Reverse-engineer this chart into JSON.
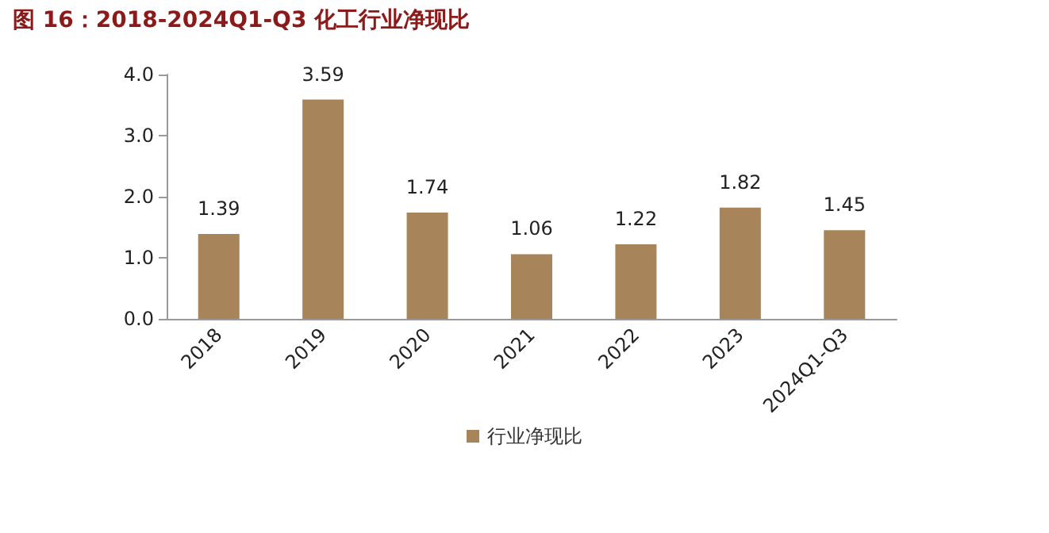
{
  "chart_data": {
    "type": "bar",
    "title": "图 16：2018-2024Q1-Q3 化工行业净现比",
    "categories": [
      "2018",
      "2019",
      "2020",
      "2021",
      "2022",
      "2023",
      "2024Q1-Q3"
    ],
    "series": [
      {
        "name": "行业净现比",
        "color": "#a8845a",
        "values": [
          1.39,
          3.59,
          1.74,
          1.06,
          1.22,
          1.82,
          1.45
        ]
      }
    ],
    "ylim": [
      0,
      4
    ],
    "yticks": [
      {
        "value": 0,
        "label": "0.0"
      },
      {
        "value": 1,
        "label": "1.0"
      },
      {
        "value": 2,
        "label": "2.0"
      },
      {
        "value": 3,
        "label": "3.0"
      },
      {
        "value": 4,
        "label": "4.0"
      }
    ],
    "data_labels": true,
    "legend": "bottom",
    "grid": false
  }
}
